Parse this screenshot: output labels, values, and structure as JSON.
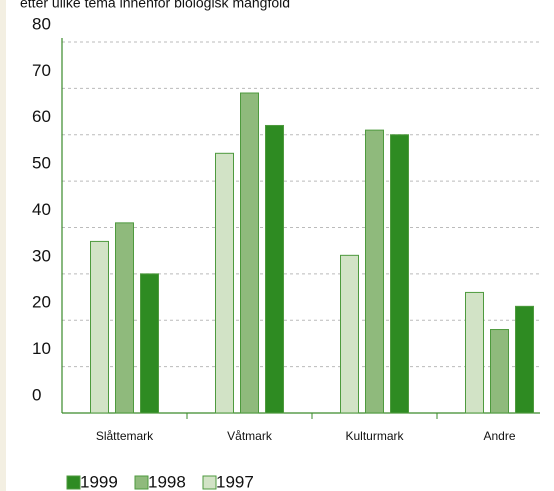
{
  "chart_data": {
    "type": "bar",
    "subtitle": "etter ulike tema innenfor biologisk mangfold",
    "categories": [
      "Slåttemark",
      "Våtmark",
      "Kulturmark",
      "Andre"
    ],
    "series": [
      {
        "name": "1997",
        "color": "#d2e3c6",
        "values": [
          37,
          56,
          34,
          26
        ]
      },
      {
        "name": "1998",
        "color": "#8fba7c",
        "values": [
          41,
          69,
          61,
          18
        ]
      },
      {
        "name": "1999",
        "color": "#2e8b22",
        "values": [
          30,
          62,
          60,
          23
        ]
      }
    ],
    "ylim": [
      0,
      80
    ],
    "yticks": [
      0,
      10,
      20,
      30,
      40,
      50,
      60,
      70,
      80
    ],
    "grid": true
  }
}
